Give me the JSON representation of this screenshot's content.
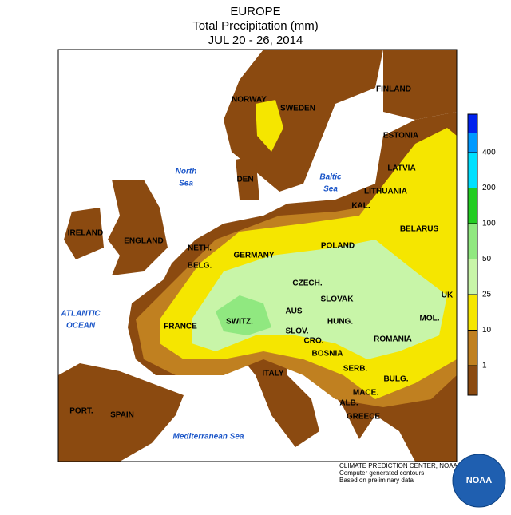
{
  "header": {
    "title": "EUROPE",
    "subtitle": "Total Precipitation (mm)",
    "dates": "JUL 20 - 26, 2014"
  },
  "countries": [
    "NORWAY",
    "SWEDEN",
    "FINLAND",
    "ESTONIA",
    "LATVIA",
    "LITHUANIA",
    "KAL.",
    "BELARUS",
    "POLAND",
    "GERMANY",
    "NETH.",
    "BELG.",
    "DEN",
    "IRELAND",
    "ENGLAND",
    "CZECH.",
    "SLOVAK",
    "UK",
    "AUS",
    "SWITZ.",
    "FRANCE",
    "HUNG.",
    "MOL.",
    "SLOV.",
    "CRO.",
    "ROMANIA",
    "BOSNIA",
    "SERB.",
    "ITALY",
    "BULG.",
    "MACE.",
    "ALB.",
    "GREECE",
    "PORT.",
    "SPAIN"
  ],
  "seas": [
    [
      "North",
      "Sea"
    ],
    [
      "Baltic",
      "Sea"
    ],
    [
      "ATLANTIC",
      "OCEAN"
    ],
    [
      "Mediterranean Sea"
    ]
  ],
  "legend": {
    "levels": [
      1,
      10,
      25,
      50,
      100,
      200,
      400
    ],
    "colors": [
      "#8b4a10",
      "#c08020",
      "#f5e600",
      "#c8f5a8",
      "#90e880",
      "#22cc22",
      "#00e0ff",
      "#0099ff",
      "#0022ee"
    ]
  },
  "credits": [
    "CLIMATE PREDICTION CENTER, NOAA",
    "Computer generated contours",
    "Based on preliminary data"
  ],
  "logo": "NOAA"
}
